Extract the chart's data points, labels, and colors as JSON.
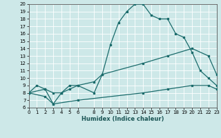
{
  "title": "",
  "xlabel": "Humidex (Indice chaleur)",
  "bg_color": "#cde8e8",
  "line_color": "#1a6b6b",
  "grid_color": "#ffffff",
  "ylim": [
    6,
    20
  ],
  "xlim": [
    0,
    23
  ],
  "yticks": [
    6,
    7,
    8,
    9,
    10,
    11,
    12,
    13,
    14,
    15,
    16,
    17,
    18,
    19,
    20
  ],
  "xticks": [
    0,
    1,
    2,
    3,
    4,
    5,
    6,
    8,
    9,
    10,
    11,
    12,
    13,
    14,
    15,
    16,
    17,
    18,
    19,
    20,
    21,
    22,
    23
  ],
  "line1_x": [
    0,
    1,
    2,
    3,
    4,
    5,
    6,
    8,
    9,
    10,
    11,
    12,
    13,
    14,
    15,
    16,
    17,
    18,
    19,
    20,
    21,
    22,
    23
  ],
  "line1_y": [
    8,
    9,
    8.5,
    6.5,
    8,
    9,
    9,
    8,
    10.5,
    14.5,
    17.5,
    19,
    20,
    20,
    18.5,
    18,
    18,
    16,
    15.5,
    13.5,
    11,
    10,
    9
  ],
  "line2_x": [
    0,
    2,
    3,
    4,
    5,
    6,
    8,
    9,
    14,
    17,
    20,
    22,
    23
  ],
  "line2_y": [
    8,
    8.5,
    8,
    8,
    8.5,
    9,
    9.5,
    10.5,
    12,
    13,
    14,
    13,
    10.5
  ],
  "line3_x": [
    0,
    2,
    3,
    6,
    14,
    17,
    20,
    22,
    23
  ],
  "line3_y": [
    8,
    7.5,
    6.5,
    7,
    8,
    8.5,
    9,
    9,
    8.5
  ]
}
